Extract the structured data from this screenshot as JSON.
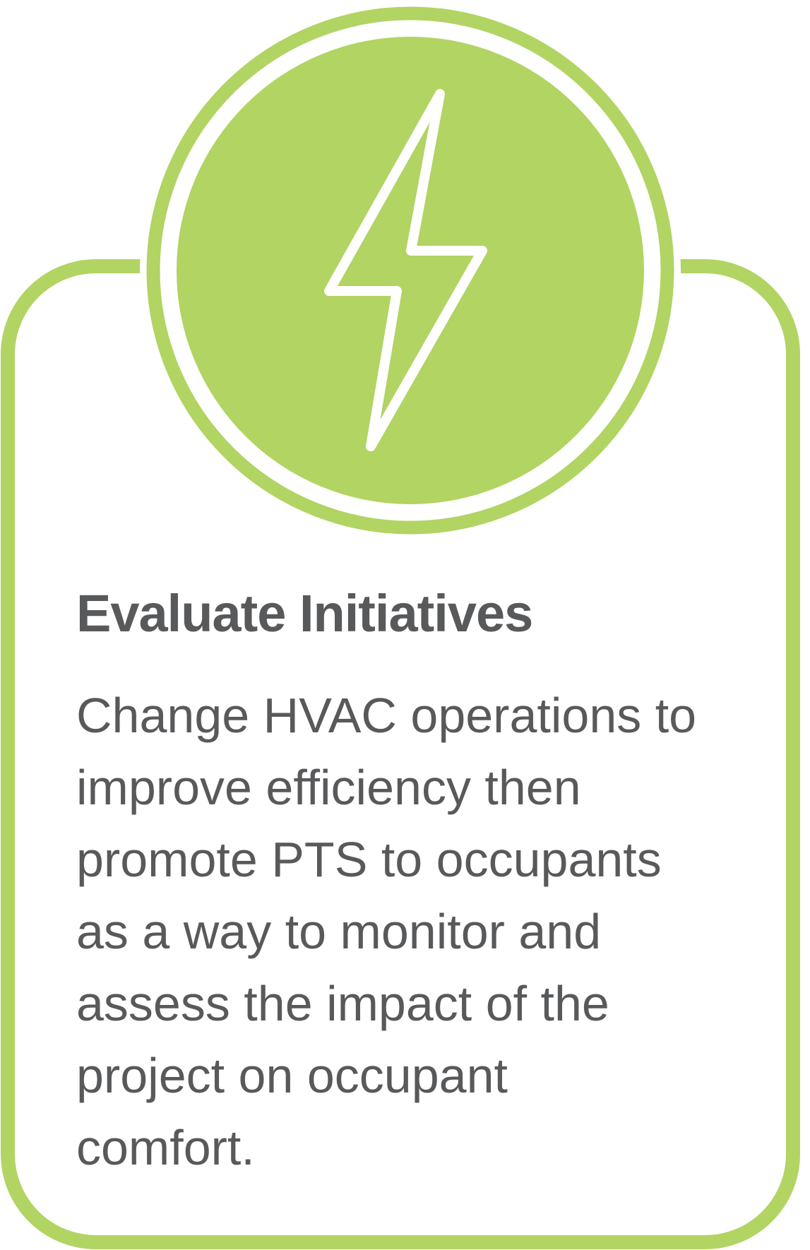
{
  "card": {
    "icon": "lightning-bolt-icon",
    "title": "Evaluate Initiatives",
    "description_lines": [
      "Change HVAC operations to",
      "improve efficiency then",
      "promote PTS to occupants",
      "as a way to monitor and",
      "assess the impact of the",
      "project on occupant",
      "comfort."
    ]
  },
  "colors": {
    "accent": "#b1d463",
    "text": "#58595b",
    "background": "#ffffff"
  }
}
